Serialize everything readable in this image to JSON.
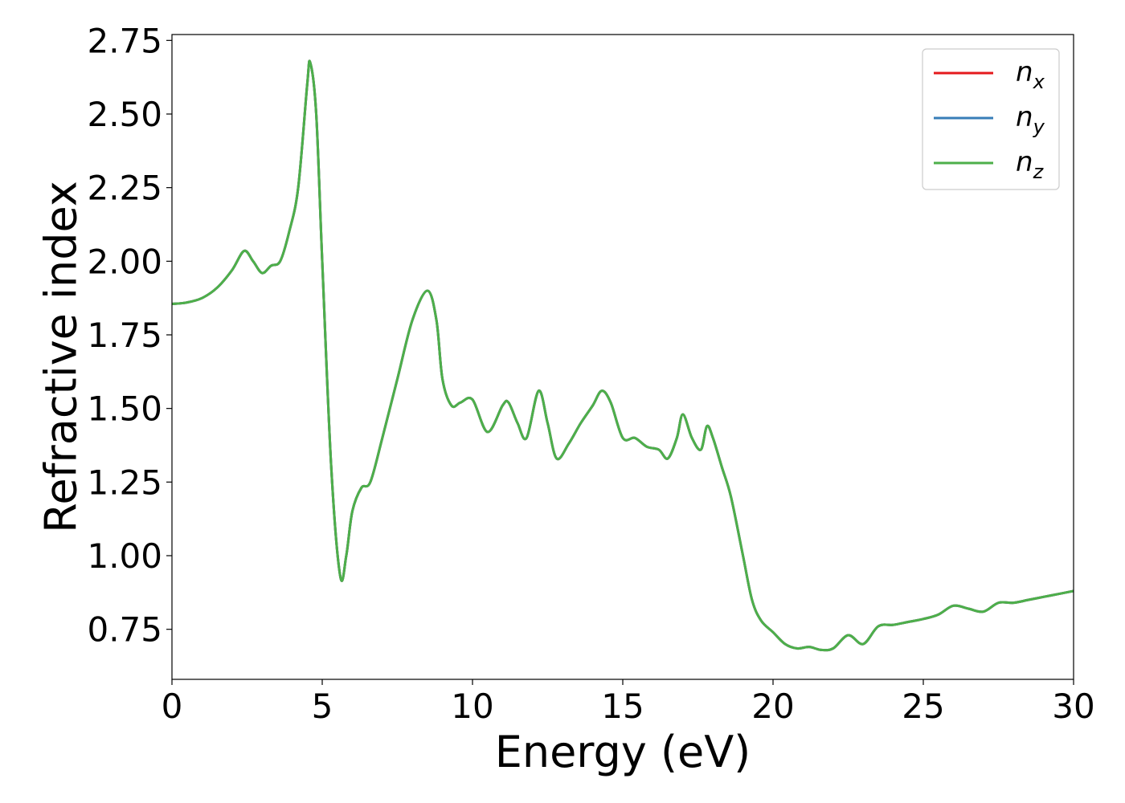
{
  "chart_data": {
    "type": "line",
    "xlabel": "Energy (eV)",
    "ylabel": "Refractive index",
    "xlim": [
      0,
      30
    ],
    "ylim": [
      0.58,
      2.77
    ],
    "xticks": [
      0,
      5,
      10,
      15,
      20,
      25,
      30
    ],
    "xtick_labels": [
      "0",
      "5",
      "10",
      "15",
      "20",
      "25",
      "30"
    ],
    "yticks": [
      0.75,
      1.0,
      1.25,
      1.5,
      1.75,
      2.0,
      2.25,
      2.5,
      2.75
    ],
    "ytick_labels": [
      "0.75",
      "1.00",
      "1.25",
      "1.50",
      "1.75",
      "2.00",
      "2.25",
      "2.50",
      "2.75"
    ],
    "grid": false,
    "legend_position": "top-right",
    "series": [
      {
        "name": "n_x",
        "legend_base": "n",
        "legend_sub": "x",
        "color": "#e41a1c",
        "x": [
          0,
          0.5,
          1,
          1.5,
          2,
          2.4,
          2.7,
          3.0,
          3.3,
          3.6,
          3.9,
          4.2,
          4.5,
          4.6,
          4.8,
          5.0,
          5.3,
          5.6,
          5.8,
          6.0,
          6.3,
          6.6,
          7.0,
          7.5,
          8.0,
          8.5,
          8.8,
          9.0,
          9.3,
          9.6,
          10.0,
          10.5,
          11.0,
          11.2,
          11.5,
          11.8,
          12.2,
          12.5,
          12.8,
          13.2,
          13.6,
          14.0,
          14.3,
          14.6,
          15.0,
          15.4,
          15.8,
          16.2,
          16.5,
          16.8,
          17.0,
          17.3,
          17.6,
          17.8,
          18.0,
          18.3,
          18.6,
          19.0,
          19.3,
          19.6,
          20.0,
          20.4,
          20.8,
          21.2,
          21.6,
          22.0,
          22.5,
          23.0,
          23.5,
          24.0,
          24.5,
          25.0,
          25.5,
          26.0,
          26.5,
          27.0,
          27.5,
          28.0,
          28.5,
          29.0,
          29.5,
          30.0
        ],
        "y": [
          1.855,
          1.86,
          1.875,
          1.91,
          1.97,
          2.035,
          2.0,
          1.96,
          1.985,
          2.0,
          2.1,
          2.25,
          2.6,
          2.675,
          2.5,
          2.0,
          1.3,
          0.93,
          1.0,
          1.15,
          1.23,
          1.25,
          1.4,
          1.6,
          1.8,
          1.9,
          1.8,
          1.6,
          1.51,
          1.52,
          1.53,
          1.42,
          1.51,
          1.52,
          1.45,
          1.4,
          1.56,
          1.45,
          1.33,
          1.38,
          1.45,
          1.51,
          1.56,
          1.52,
          1.4,
          1.4,
          1.37,
          1.36,
          1.33,
          1.4,
          1.48,
          1.4,
          1.36,
          1.44,
          1.4,
          1.3,
          1.2,
          1.0,
          0.85,
          0.78,
          0.74,
          0.7,
          0.685,
          0.69,
          0.68,
          0.685,
          0.73,
          0.7,
          0.76,
          0.765,
          0.775,
          0.785,
          0.8,
          0.83,
          0.82,
          0.81,
          0.84,
          0.84,
          0.85,
          0.86,
          0.87,
          0.88
        ]
      },
      {
        "name": "n_y",
        "legend_base": "n",
        "legend_sub": "y",
        "color": "#377eb8",
        "x": [
          0,
          0.5,
          1,
          1.5,
          2,
          2.4,
          2.7,
          3.0,
          3.3,
          3.6,
          3.9,
          4.2,
          4.5,
          4.6,
          4.8,
          5.0,
          5.3,
          5.6,
          5.8,
          6.0,
          6.3,
          6.6,
          7.0,
          7.5,
          8.0,
          8.5,
          8.8,
          9.0,
          9.3,
          9.6,
          10.0,
          10.5,
          11.0,
          11.2,
          11.5,
          11.8,
          12.2,
          12.5,
          12.8,
          13.2,
          13.6,
          14.0,
          14.3,
          14.6,
          15.0,
          15.4,
          15.8,
          16.2,
          16.5,
          16.8,
          17.0,
          17.3,
          17.6,
          17.8,
          18.0,
          18.3,
          18.6,
          19.0,
          19.3,
          19.6,
          20.0,
          20.4,
          20.8,
          21.2,
          21.6,
          22.0,
          22.5,
          23.0,
          23.5,
          24.0,
          24.5,
          25.0,
          25.5,
          26.0,
          26.5,
          27.0,
          27.5,
          28.0,
          28.5,
          29.0,
          29.5,
          30.0
        ],
        "y": [
          1.855,
          1.86,
          1.875,
          1.91,
          1.97,
          2.035,
          2.0,
          1.96,
          1.985,
          2.0,
          2.1,
          2.25,
          2.6,
          2.675,
          2.5,
          2.0,
          1.3,
          0.93,
          1.0,
          1.15,
          1.23,
          1.25,
          1.4,
          1.6,
          1.8,
          1.9,
          1.8,
          1.6,
          1.51,
          1.52,
          1.53,
          1.42,
          1.51,
          1.52,
          1.45,
          1.4,
          1.56,
          1.45,
          1.33,
          1.38,
          1.45,
          1.51,
          1.56,
          1.52,
          1.4,
          1.4,
          1.37,
          1.36,
          1.33,
          1.4,
          1.48,
          1.4,
          1.36,
          1.44,
          1.4,
          1.3,
          1.2,
          1.0,
          0.85,
          0.78,
          0.74,
          0.7,
          0.685,
          0.69,
          0.68,
          0.685,
          0.73,
          0.7,
          0.76,
          0.765,
          0.775,
          0.785,
          0.8,
          0.83,
          0.82,
          0.81,
          0.84,
          0.84,
          0.85,
          0.86,
          0.87,
          0.88
        ]
      },
      {
        "name": "n_z",
        "legend_base": "n",
        "legend_sub": "z",
        "color": "#4daf4a",
        "x": [
          0,
          0.5,
          1,
          1.5,
          2,
          2.4,
          2.7,
          3.0,
          3.3,
          3.6,
          3.9,
          4.2,
          4.5,
          4.6,
          4.8,
          5.0,
          5.3,
          5.6,
          5.8,
          6.0,
          6.3,
          6.6,
          7.0,
          7.5,
          8.0,
          8.5,
          8.8,
          9.0,
          9.3,
          9.6,
          10.0,
          10.5,
          11.0,
          11.2,
          11.5,
          11.8,
          12.2,
          12.5,
          12.8,
          13.2,
          13.6,
          14.0,
          14.3,
          14.6,
          15.0,
          15.4,
          15.8,
          16.2,
          16.5,
          16.8,
          17.0,
          17.3,
          17.6,
          17.8,
          18.0,
          18.3,
          18.6,
          19.0,
          19.3,
          19.6,
          20.0,
          20.4,
          20.8,
          21.2,
          21.6,
          22.0,
          22.5,
          23.0,
          23.5,
          24.0,
          24.5,
          25.0,
          25.5,
          26.0,
          26.5,
          27.0,
          27.5,
          28.0,
          28.5,
          29.0,
          29.5,
          30.0
        ],
        "y": [
          1.855,
          1.86,
          1.875,
          1.91,
          1.97,
          2.035,
          2.0,
          1.96,
          1.985,
          2.0,
          2.1,
          2.25,
          2.6,
          2.675,
          2.5,
          2.0,
          1.3,
          0.93,
          1.0,
          1.15,
          1.23,
          1.25,
          1.4,
          1.6,
          1.8,
          1.9,
          1.8,
          1.6,
          1.51,
          1.52,
          1.53,
          1.42,
          1.51,
          1.52,
          1.45,
          1.4,
          1.56,
          1.45,
          1.33,
          1.38,
          1.45,
          1.51,
          1.56,
          1.52,
          1.4,
          1.4,
          1.37,
          1.36,
          1.33,
          1.4,
          1.48,
          1.4,
          1.36,
          1.44,
          1.4,
          1.3,
          1.2,
          1.0,
          0.85,
          0.78,
          0.74,
          0.7,
          0.685,
          0.69,
          0.68,
          0.685,
          0.73,
          0.7,
          0.76,
          0.765,
          0.775,
          0.785,
          0.8,
          0.83,
          0.82,
          0.81,
          0.84,
          0.84,
          0.85,
          0.86,
          0.87,
          0.88
        ]
      }
    ]
  }
}
